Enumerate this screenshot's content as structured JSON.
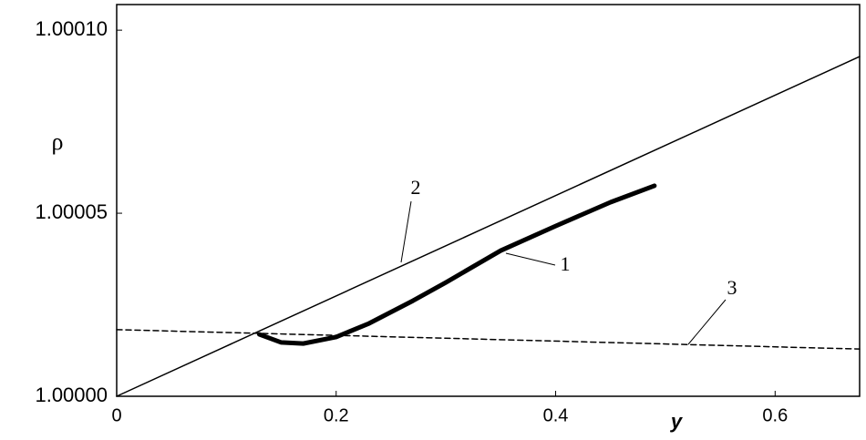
{
  "chart_data": {
    "type": "line",
    "x_label": "y",
    "y_label": "ρ",
    "xlim": [
      0,
      0.677
    ],
    "ylim": [
      1.0,
      1.000107
    ],
    "xticks": [
      0,
      0.2,
      0.4,
      0.6
    ],
    "yticks": [
      {
        "value": 1.0,
        "label": "1.00000"
      },
      {
        "value": 1.00005,
        "label": "1.00005"
      },
      {
        "value": 1.0001,
        "label": "1.00010"
      }
    ],
    "series": [
      {
        "name": "1",
        "color": "#000000",
        "style": "thick",
        "x": [
          0.13,
          0.15,
          0.17,
          0.2,
          0.23,
          0.27,
          0.3,
          0.35,
          0.4,
          0.45,
          0.49
        ],
        "values": [
          1.0000169,
          1.0000147,
          1.0000144,
          1.0000162,
          1.0000199,
          1.0000261,
          1.0000311,
          1.0000398,
          1.0000465,
          1.000053,
          1.0000575
        ]
      },
      {
        "name": "2",
        "color": "#000000",
        "style": "solid",
        "x": [
          0,
          0.677
        ],
        "values": [
          1.0,
          1.0000928
        ]
      },
      {
        "name": "3",
        "color": "#000000",
        "style": "dashed",
        "x": [
          0,
          0.677
        ],
        "values": [
          1.0000182,
          1.0000129
        ]
      }
    ]
  }
}
